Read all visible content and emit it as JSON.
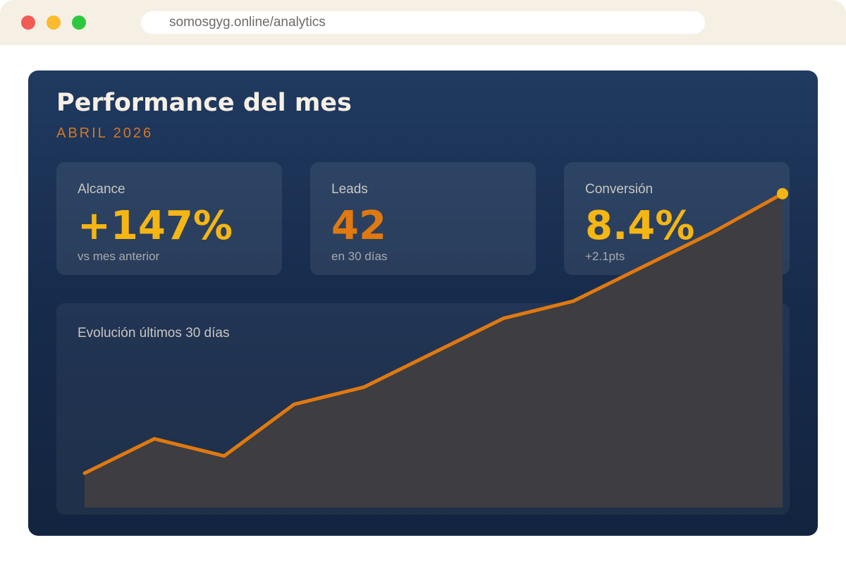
{
  "browser": {
    "url": "somosgyg.online/analytics",
    "buttons": {
      "close_color": "#f05b56",
      "minimize_color": "#fbbb2e",
      "maximize_color": "#2ec840"
    }
  },
  "dashboard": {
    "title": "Performance del mes",
    "subtitle": "ABRIL 2026",
    "cards": [
      {
        "label": "Alcance",
        "value": "+147%",
        "note": "vs mes anterior",
        "value_color": "#f5b614"
      },
      {
        "label": "Leads",
        "value": "42",
        "note": "en 30 días",
        "value_color": "#e0790f"
      },
      {
        "label": "Conversión",
        "value": "8.4%",
        "note": "+2.1pts",
        "value_color": "#f5b614"
      }
    ],
    "chart_title": "Evolución últimos 30 días"
  },
  "colors": {
    "accent": "#e0790f",
    "endpoint": "#f5b614",
    "area_fill": "#3d3d42"
  },
  "chart_data": {
    "type": "area",
    "x": [
      1,
      2,
      3,
      4,
      5,
      6,
      7,
      8,
      9,
      10,
      11
    ],
    "values": [
      4,
      8,
      6,
      12,
      14,
      18,
      22,
      24,
      28,
      32,
      36.5
    ],
    "ylim": [
      0,
      40
    ],
    "title": "Evolución últimos 30 días",
    "xlabel": "",
    "ylabel": "",
    "grid": false,
    "legend": "none"
  }
}
